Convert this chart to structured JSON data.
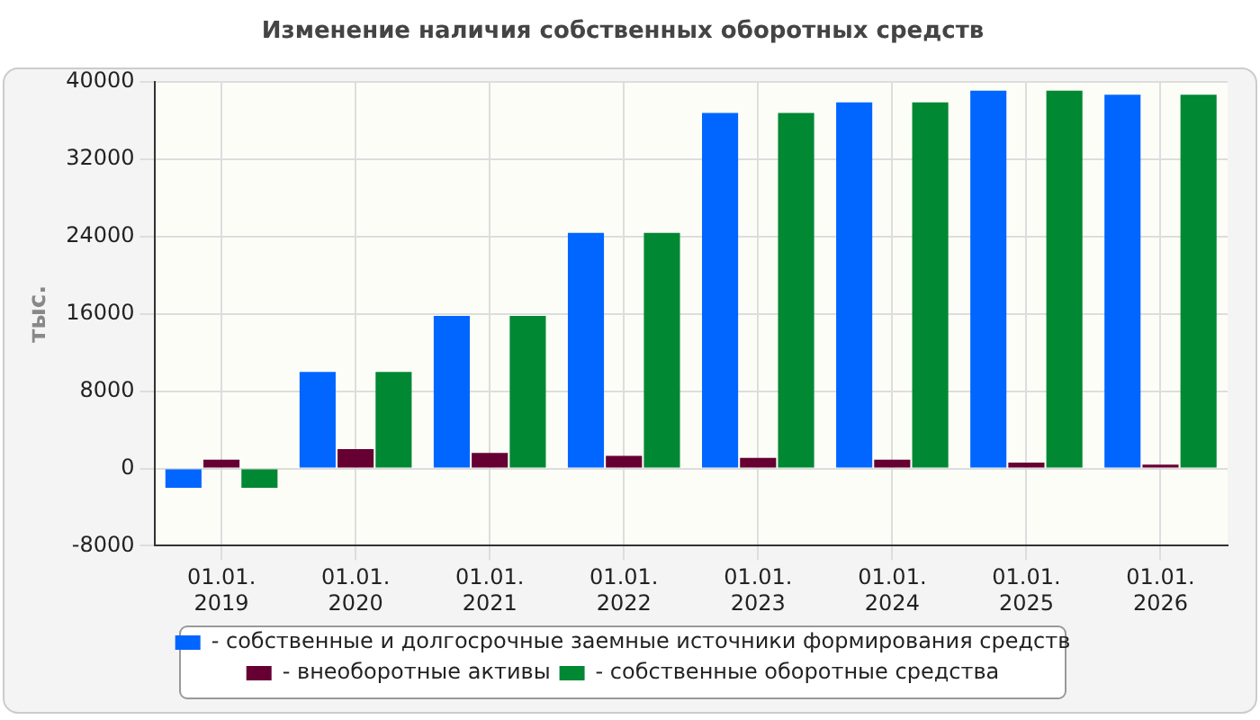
{
  "chart_data": {
    "type": "bar",
    "title": "Изменение наличия собственных оборотных средств",
    "ylabel": "тыс.",
    "categories": [
      "01.01. 2019",
      "01.01. 2020",
      "01.01. 2021",
      "01.01. 2022",
      "01.01. 2023",
      "01.01. 2024",
      "01.01. 2025",
      "01.01. 2026"
    ],
    "series": [
      {
        "name": "- собственные и долгосрочные заемные источники формирования средств",
        "color": "#0066ff",
        "values": [
          -2000,
          10000,
          15800,
          24400,
          36800,
          37900,
          39100,
          38700
        ]
      },
      {
        "name": "- внеоборотные активы",
        "color": "#660033",
        "values": [
          900,
          2000,
          1600,
          1300,
          1100,
          900,
          600,
          400
        ]
      },
      {
        "name": "- собственные оборотные средства",
        "color": "#008833",
        "values": [
          -2000,
          10000,
          15800,
          24400,
          36800,
          37900,
          39100,
          38700
        ]
      }
    ],
    "ylim": [
      -8000,
      40000
    ],
    "yticks": [
      -8000,
      0,
      8000,
      16000,
      24000,
      32000,
      40000
    ],
    "grid": true,
    "legend": "bottom"
  }
}
